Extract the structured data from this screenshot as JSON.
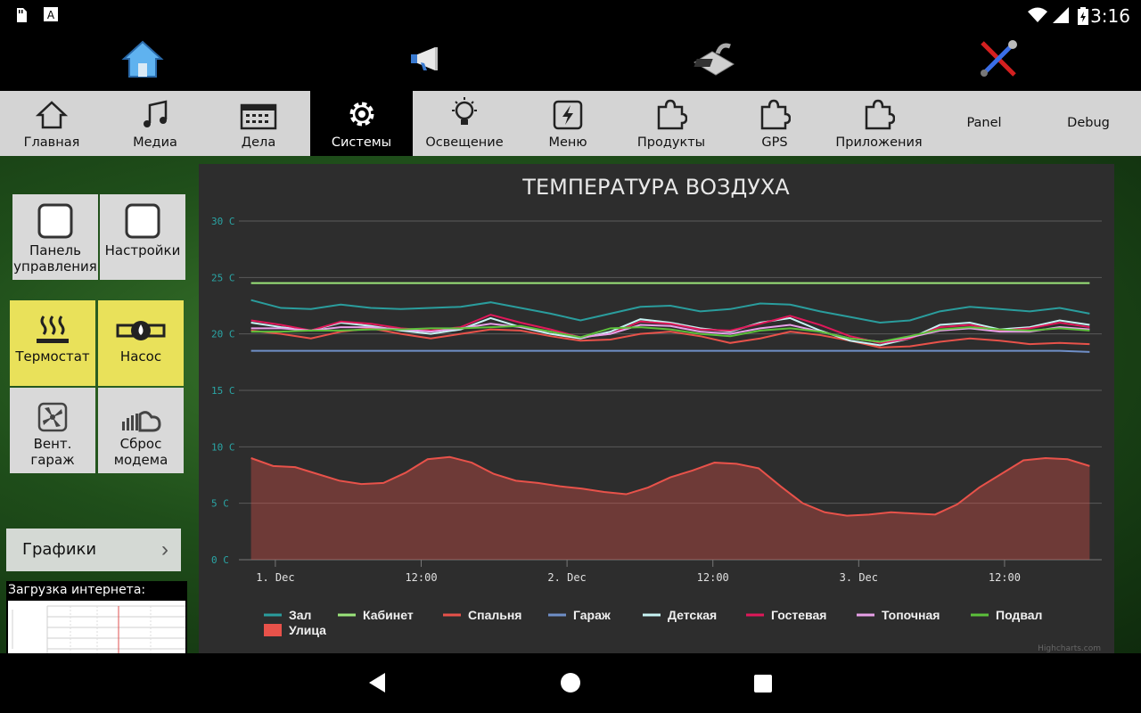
{
  "status": {
    "time": "3:16"
  },
  "top_icons": [
    "home-icon",
    "megaphone-icon",
    "scanner-icon",
    "tools-icon"
  ],
  "tabs": [
    {
      "label": "Главная",
      "icon": "home-icon"
    },
    {
      "label": "Медиа",
      "icon": "music-icon"
    },
    {
      "label": "Дела",
      "icon": "calendar-icon"
    },
    {
      "label": "Системы",
      "icon": "gear-icon",
      "active": true
    },
    {
      "label": "Освещение",
      "icon": "bulb-icon"
    },
    {
      "label": "Меню",
      "icon": "bolt-icon"
    },
    {
      "label": "Продукты",
      "icon": "puzzle-icon"
    },
    {
      "label": "GPS",
      "icon": "puzzle-icon"
    },
    {
      "label": "Приложения",
      "icon": "puzzle-icon"
    },
    {
      "label": "Panel"
    },
    {
      "label": "Debug"
    }
  ],
  "sidebar": {
    "tiles": [
      {
        "label": "Панель управления",
        "icon": "checkbox-icon"
      },
      {
        "label": "Настройки",
        "icon": "checkbox-icon"
      },
      {
        "label": "Термостат",
        "icon": "heat-icon"
      },
      {
        "label": "Насос",
        "icon": "pump-icon"
      },
      {
        "label": "Вент. гараж",
        "icon": "fan-icon"
      },
      {
        "label": "Сброс модема",
        "icon": "cloud-icon"
      }
    ],
    "graphs_button": "Графики",
    "internet_label": "Загрузка интернета:"
  },
  "chart_data": {
    "type": "line",
    "title": "ТЕМПЕРАТУРА ВОЗДУХА",
    "y_ticks": [
      "0 C",
      "5 C",
      "10 C",
      "15 C",
      "20 C",
      "25 C",
      "30 C"
    ],
    "ylim": [
      0,
      30
    ],
    "x_ticks": [
      "1. Dec",
      "12:00",
      "2. Dec",
      "12:00",
      "3. Dec",
      "12:00"
    ],
    "x_tick_hours": [
      12,
      24,
      36,
      48,
      60,
      72
    ],
    "xlim": [
      9,
      80
    ],
    "credit": "Highcharts.com",
    "series": [
      {
        "name": "Зал",
        "color": "#2a9d9d",
        "values": [
          23,
          22.3,
          22.2,
          22.6,
          22.3,
          22.2,
          22.3,
          22.4,
          22.8,
          22.3,
          21.8,
          21.2,
          21.8,
          22.4,
          22.5,
          22.0,
          22.2,
          22.7,
          22.6,
          22.0,
          21.5,
          21.0,
          21.2,
          22.0,
          22.4,
          22.2,
          22.0,
          22.3,
          21.8
        ]
      },
      {
        "name": "Кабинет",
        "color": "#9be57a",
        "values": [
          24.5,
          24.5,
          24.5,
          24.5,
          24.5,
          24.5,
          24.5,
          24.5,
          24.5,
          24.5,
          24.5,
          24.5,
          24.5,
          24.5,
          24.5,
          24.5,
          24.5,
          24.5,
          24.5,
          24.5,
          24.5,
          24.5,
          24.5,
          24.5,
          24.5,
          24.5,
          24.5,
          24.5,
          24.5
        ]
      },
      {
        "name": "Спальня",
        "color": "#e8524a",
        "values": [
          20.3,
          20.0,
          19.6,
          20.2,
          20.5,
          20.0,
          19.6,
          20.0,
          20.4,
          20.3,
          19.8,
          19.4,
          19.5,
          20.0,
          20.2,
          19.8,
          19.2,
          19.6,
          20.2,
          19.9,
          19.4,
          18.8,
          18.9,
          19.3,
          19.6,
          19.4,
          19.1,
          19.2,
          19.1
        ]
      },
      {
        "name": "Гараж",
        "color": "#6f8fc8",
        "values": [
          18.5,
          18.5,
          18.5,
          18.5,
          18.5,
          18.5,
          18.5,
          18.5,
          18.5,
          18.5,
          18.5,
          18.5,
          18.5,
          18.5,
          18.5,
          18.5,
          18.5,
          18.5,
          18.5,
          18.5,
          18.5,
          18.5,
          18.5,
          18.5,
          18.5,
          18.5,
          18.5,
          18.5,
          18.4
        ]
      },
      {
        "name": "Детская",
        "color": "#c8f4f4",
        "values": [
          21.0,
          20.6,
          20.3,
          21.0,
          20.7,
          20.3,
          20.0,
          20.4,
          21.4,
          20.6,
          20.0,
          19.6,
          20.2,
          21.3,
          21.0,
          20.5,
          20.2,
          21.0,
          21.4,
          20.3,
          19.4,
          19.0,
          19.6,
          20.8,
          21.0,
          20.4,
          20.6,
          21.2,
          20.8
        ]
      },
      {
        "name": "Гостевая",
        "color": "#e0185a",
        "values": [
          21.2,
          20.8,
          20.3,
          21.1,
          20.9,
          20.5,
          20.3,
          20.6,
          21.7,
          21.0,
          20.4,
          19.7,
          20.0,
          21.1,
          20.9,
          20.4,
          20.3,
          20.9,
          21.6,
          20.8,
          19.8,
          19.2,
          19.6,
          20.6,
          20.8,
          20.3,
          20.5,
          21.0,
          20.6
        ]
      },
      {
        "name": "Топочная",
        "color": "#e8a0e8",
        "values": [
          20.5,
          20.5,
          20.3,
          20.6,
          20.6,
          20.4,
          20.2,
          20.5,
          20.9,
          20.6,
          20.2,
          19.7,
          20.0,
          20.8,
          20.7,
          20.2,
          20.0,
          20.5,
          20.8,
          20.2,
          19.6,
          19.3,
          19.7,
          20.3,
          20.5,
          20.2,
          20.2,
          20.6,
          20.4
        ]
      },
      {
        "name": "Подвал",
        "color": "#5cc03a",
        "values": [
          20.2,
          20.2,
          20.3,
          20.3,
          20.4,
          20.4,
          20.5,
          20.5,
          20.6,
          20.7,
          20.2,
          19.7,
          20.5,
          20.6,
          20.4,
          20.0,
          19.8,
          20.3,
          20.5,
          20.2,
          19.6,
          19.3,
          19.8,
          20.4,
          20.6,
          20.4,
          20.3,
          20.5,
          20.3
        ]
      },
      {
        "name": "Улица",
        "color": "#e8524a",
        "area": true,
        "values": [
          9.0,
          8.3,
          8.2,
          7.6,
          7.0,
          6.7,
          6.8,
          7.7,
          8.9,
          9.1,
          8.6,
          7.6,
          7.0,
          6.8,
          6.5,
          6.3,
          6.0,
          5.8,
          6.4,
          7.3,
          7.9,
          8.6,
          8.5,
          8.1,
          6.5,
          5.0,
          4.2,
          3.9,
          4.0,
          4.2,
          4.1,
          4.0,
          4.9,
          6.4,
          7.6,
          8.8,
          9.0,
          8.9,
          8.3
        ]
      }
    ]
  }
}
